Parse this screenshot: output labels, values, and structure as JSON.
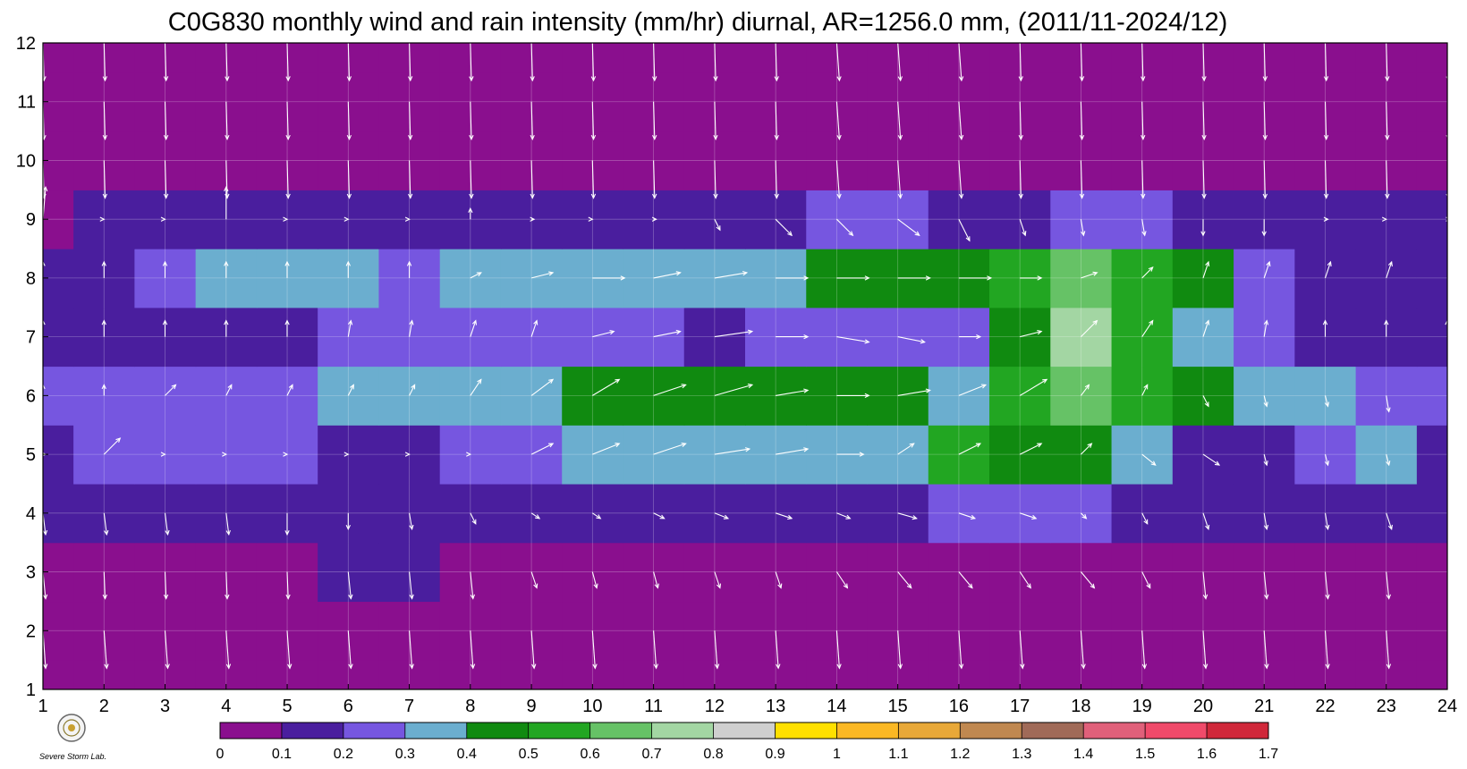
{
  "chart_data": {
    "type": "heatmap",
    "title": "C0G830 monthly wind and rain intensity (mm/hr) diurnal, AR=1256.0 mm, (2011/11-2024/12)",
    "xlabel": "",
    "ylabel": "",
    "xlim": [
      1,
      24
    ],
    "ylim": [
      1,
      12
    ],
    "x_ticks": [
      "1",
      "2",
      "3",
      "4",
      "5",
      "6",
      "7",
      "8",
      "9",
      "10",
      "11",
      "12",
      "13",
      "14",
      "15",
      "16",
      "17",
      "18",
      "19",
      "20",
      "21",
      "22",
      "23",
      "24"
    ],
    "y_ticks": [
      "1",
      "2",
      "3",
      "4",
      "5",
      "6",
      "7",
      "8",
      "9",
      "10",
      "11",
      "12"
    ],
    "grid": true,
    "colorbar": {
      "placement": "bottom",
      "labels": [
        "0",
        "0.1",
        "0.2",
        "0.3",
        "0.4",
        "0.5",
        "0.6",
        "0.7",
        "0.8",
        "0.9",
        "1",
        "1.1",
        "1.2",
        "1.3",
        "1.4",
        "1.5",
        "1.6",
        "1.7"
      ],
      "colors": [
        "#8a0f8e",
        "#4a1e9e",
        "#7656e0",
        "#6baecf",
        "#108a10",
        "#22a622",
        "#66c266",
        "#a3d6a3",
        "#cfcfcf",
        "#ffe000",
        "#fbb824",
        "#e8a838",
        "#c08850",
        "#a06a58",
        "#e0607a",
        "#f04a6a",
        "#d0283a"
      ]
    },
    "rain_intensity": {
      "hours": [
        1,
        2,
        3,
        4,
        5,
        6,
        7,
        8,
        9,
        10,
        11,
        12,
        13,
        14,
        15,
        16,
        17,
        18,
        19,
        20,
        21,
        22,
        23,
        24
      ],
      "months": [
        1,
        2,
        3,
        4,
        5,
        6,
        7,
        8,
        9,
        10,
        11,
        12
      ],
      "values": [
        [
          0.05,
          0.05,
          0.05,
          0.05,
          0.05,
          0.05,
          0.05,
          0.05,
          0.05,
          0.05,
          0.05,
          0.05,
          0.05,
          0.05,
          0.05,
          0.05,
          0.05,
          0.05,
          0.05,
          0.05,
          0.05,
          0.05,
          0.05,
          0.05
        ],
        [
          0.05,
          0.05,
          0.05,
          0.05,
          0.05,
          0.05,
          0.05,
          0.05,
          0.05,
          0.05,
          0.05,
          0.05,
          0.05,
          0.05,
          0.05,
          0.05,
          0.05,
          0.05,
          0.05,
          0.05,
          0.05,
          0.05,
          0.05,
          0.05
        ],
        [
          0.06,
          0.07,
          0.07,
          0.06,
          0.09,
          0.11,
          0.11,
          0.09,
          0.06,
          0.06,
          0.06,
          0.07,
          0.07,
          0.07,
          0.08,
          0.07,
          0.07,
          0.09,
          0.07,
          0.07,
          0.08,
          0.07,
          0.08,
          0.06
        ],
        [
          0.1,
          0.12,
          0.12,
          0.13,
          0.12,
          0.15,
          0.15,
          0.19,
          0.19,
          0.19,
          0.16,
          0.17,
          0.17,
          0.18,
          0.19,
          0.22,
          0.24,
          0.22,
          0.13,
          0.13,
          0.12,
          0.13,
          0.15,
          0.12
        ],
        [
          0.17,
          0.28,
          0.22,
          0.22,
          0.22,
          0.12,
          0.14,
          0.25,
          0.28,
          0.35,
          0.32,
          0.33,
          0.35,
          0.37,
          0.33,
          0.55,
          0.46,
          0.43,
          0.32,
          0.19,
          0.19,
          0.22,
          0.32,
          0.18
        ],
        [
          0.21,
          0.22,
          0.2,
          0.2,
          0.26,
          0.33,
          0.32,
          0.32,
          0.35,
          0.44,
          0.48,
          0.43,
          0.48,
          0.42,
          0.45,
          0.36,
          0.52,
          0.68,
          0.56,
          0.42,
          0.32,
          0.33,
          0.23,
          0.22
        ],
        [
          0.12,
          0.14,
          0.17,
          0.1,
          0.14,
          0.22,
          0.28,
          0.26,
          0.26,
          0.28,
          0.25,
          0.15,
          0.22,
          0.25,
          0.25,
          0.28,
          0.48,
          0.75,
          0.55,
          0.36,
          0.26,
          0.14,
          0.12,
          0.1
        ],
        [
          0.12,
          0.15,
          0.26,
          0.32,
          0.32,
          0.32,
          0.26,
          0.32,
          0.33,
          0.35,
          0.33,
          0.33,
          0.38,
          0.42,
          0.42,
          0.42,
          0.5,
          0.62,
          0.52,
          0.45,
          0.28,
          0.14,
          0.12,
          0.12
        ],
        [
          0.08,
          0.11,
          0.12,
          0.15,
          0.13,
          0.13,
          0.13,
          0.14,
          0.14,
          0.14,
          0.14,
          0.16,
          0.18,
          0.28,
          0.22,
          0.18,
          0.18,
          0.23,
          0.2,
          0.16,
          0.12,
          0.12,
          0.12,
          0.12
        ],
        [
          0.05,
          0.05,
          0.05,
          0.05,
          0.05,
          0.05,
          0.05,
          0.05,
          0.05,
          0.05,
          0.05,
          0.05,
          0.05,
          0.05,
          0.05,
          0.05,
          0.05,
          0.05,
          0.05,
          0.05,
          0.05,
          0.05,
          0.05,
          0.05
        ],
        [
          0.05,
          0.05,
          0.05,
          0.05,
          0.05,
          0.05,
          0.05,
          0.05,
          0.05,
          0.05,
          0.05,
          0.05,
          0.05,
          0.05,
          0.05,
          0.05,
          0.05,
          0.05,
          0.05,
          0.05,
          0.05,
          0.05,
          0.05,
          0.05
        ],
        [
          0.05,
          0.05,
          0.05,
          0.05,
          0.05,
          0.05,
          0.05,
          0.05,
          0.05,
          0.05,
          0.05,
          0.05,
          0.05,
          0.05,
          0.05,
          0.05,
          0.05,
          0.05,
          0.05,
          0.05,
          0.05,
          0.05,
          0.05,
          0.05
        ]
      ]
    },
    "wind": {
      "hours": [
        1,
        2,
        3,
        4,
        5,
        6,
        7,
        8,
        9,
        10,
        11,
        12,
        13,
        14,
        15,
        16,
        17,
        18,
        19,
        20,
        21,
        22,
        23,
        24
      ],
      "months": [
        2,
        3,
        4,
        5,
        6,
        7,
        8,
        9,
        10,
        11,
        12
      ],
      "u": [
        [
          0.05,
          0.05,
          0.05,
          0.05,
          0.05,
          0.05,
          0.05,
          0.05,
          0.05,
          0.05,
          0.05,
          0.05,
          0.05,
          0.05,
          0.05,
          0.05,
          0.05,
          0.05,
          0.05,
          0.05,
          0.05,
          0.05,
          0.05,
          0.05
        ],
        [
          0.05,
          0.02,
          0.02,
          0.02,
          0.02,
          0.05,
          0.05,
          0.05,
          0.1,
          0.08,
          0.08,
          0.1,
          0.1,
          0.2,
          0.25,
          0.25,
          0.2,
          0.25,
          0.15,
          0.05,
          0.05,
          0.05,
          0.05,
          0.05
        ],
        [
          0.05,
          0.05,
          0.05,
          0.05,
          0.0,
          0.0,
          0.05,
          0.1,
          0.15,
          0.15,
          0.2,
          0.25,
          0.3,
          0.25,
          0.35,
          0.3,
          0.3,
          0.1,
          0.1,
          0.1,
          0.05,
          0.05,
          0.1,
          0.05
        ],
        [
          0.05,
          0.3,
          0.0,
          0.0,
          0.0,
          0.0,
          0.0,
          0.0,
          0.4,
          0.5,
          0.6,
          0.65,
          0.6,
          0.5,
          0.3,
          0.4,
          0.4,
          0.2,
          0.25,
          0.3,
          0.05,
          0.05,
          0.05,
          0.05
        ],
        [
          0.0,
          0.0,
          0.2,
          0.1,
          0.1,
          0.1,
          0.1,
          0.2,
          0.4,
          0.5,
          0.6,
          0.7,
          0.6,
          0.6,
          0.6,
          0.5,
          0.5,
          0.15,
          0.1,
          0.1,
          0.05,
          0.05,
          0.05,
          0.05
        ],
        [
          0.0,
          0.0,
          0.0,
          0.0,
          0.0,
          0.05,
          0.05,
          0.1,
          0.1,
          0.4,
          0.5,
          0.7,
          0.6,
          0.6,
          0.5,
          0.4,
          0.4,
          0.3,
          0.2,
          0.1,
          0.05,
          0.0,
          0.0,
          0.0
        ],
        [
          0.0,
          0.0,
          0.0,
          0.0,
          0.0,
          0.0,
          0.0,
          0.2,
          0.4,
          0.6,
          0.5,
          0.6,
          0.6,
          0.6,
          0.6,
          0.6,
          0.4,
          0.3,
          0.2,
          0.1,
          0.1,
          0.1,
          0.1,
          0.05
        ],
        [
          0.05,
          0.0,
          0.0,
          0.0,
          0.0,
          0.0,
          0.0,
          0.0,
          0.05,
          0.0,
          0.05,
          0.1,
          0.3,
          0.3,
          0.4,
          0.2,
          0.1,
          0.05,
          0.05,
          0.0,
          0.0,
          0.05,
          0.0,
          0.05
        ],
        [
          0.02,
          0.02,
          0.02,
          0.02,
          0.02,
          0.02,
          0.02,
          0.02,
          0.02,
          0.02,
          0.02,
          0.02,
          0.02,
          0.05,
          0.05,
          0.05,
          0.02,
          0.02,
          0.02,
          0.02,
          0.02,
          0.02,
          0.02,
          0.02
        ],
        [
          0.02,
          0.02,
          0.02,
          0.02,
          0.02,
          0.02,
          0.02,
          0.02,
          0.02,
          0.02,
          0.02,
          0.02,
          0.02,
          0.05,
          0.05,
          0.05,
          0.02,
          0.02,
          0.02,
          0.02,
          0.02,
          0.02,
          0.02,
          0.02
        ],
        [
          0.02,
          0.02,
          0.02,
          0.02,
          0.02,
          0.02,
          0.02,
          0.02,
          0.02,
          0.02,
          0.02,
          0.02,
          0.02,
          0.05,
          0.05,
          0.05,
          0.02,
          0.02,
          0.02,
          0.02,
          0.02,
          0.02,
          0.02,
          0.02
        ]
      ],
      "v": [
        [
          -0.7,
          -0.7,
          -0.7,
          -0.7,
          -0.7,
          -0.7,
          -0.7,
          -0.7,
          -0.7,
          -0.7,
          -0.7,
          -0.7,
          -0.7,
          -0.7,
          -0.7,
          -0.7,
          -0.7,
          -0.7,
          -0.7,
          -0.7,
          -0.7,
          -0.7,
          -0.7,
          -0.7
        ],
        [
          -0.5,
          -0.5,
          -0.5,
          -0.5,
          -0.5,
          -0.5,
          -0.5,
          -0.5,
          -0.3,
          -0.3,
          -0.3,
          -0.3,
          -0.3,
          -0.3,
          -0.3,
          -0.3,
          -0.3,
          -0.3,
          -0.3,
          -0.5,
          -0.5,
          -0.5,
          -0.5,
          -0.5
        ],
        [
          -0.4,
          -0.4,
          -0.4,
          -0.4,
          -0.4,
          -0.3,
          -0.3,
          -0.2,
          -0.1,
          -0.1,
          -0.1,
          -0.1,
          -0.1,
          -0.1,
          -0.1,
          -0.1,
          -0.1,
          -0.1,
          -0.2,
          -0.3,
          -0.3,
          -0.3,
          -0.3,
          -0.3
        ],
        [
          0.0,
          0.3,
          0.0,
          0.0,
          0.0,
          0.0,
          0.0,
          0.0,
          0.2,
          0.2,
          0.2,
          0.1,
          0.1,
          0.0,
          0.2,
          0.2,
          0.2,
          0.2,
          -0.2,
          -0.2,
          -0.2,
          -0.2,
          -0.2,
          -0.3
        ],
        [
          0.2,
          0.2,
          0.2,
          0.2,
          0.2,
          0.2,
          0.2,
          0.3,
          0.3,
          0.3,
          0.2,
          0.2,
          0.1,
          0.0,
          0.1,
          0.2,
          0.3,
          0.2,
          0.2,
          -0.2,
          -0.2,
          -0.2,
          -0.3,
          -0.3
        ],
        [
          0.3,
          0.3,
          0.3,
          0.3,
          0.3,
          0.3,
          0.3,
          0.3,
          0.3,
          0.1,
          0.1,
          0.1,
          0.0,
          -0.1,
          -0.1,
          0.0,
          0.1,
          0.3,
          0.3,
          0.3,
          0.3,
          0.3,
          0.3,
          0.3
        ],
        [
          0.3,
          0.3,
          0.3,
          0.3,
          0.3,
          0.3,
          0.3,
          0.1,
          0.1,
          0.0,
          0.1,
          0.1,
          0.0,
          0.0,
          0.0,
          0.0,
          0.0,
          0.1,
          0.2,
          0.3,
          0.3,
          0.3,
          0.3,
          0.3
        ],
        [
          0.6,
          0.0,
          0.0,
          0.6,
          0.0,
          0.0,
          0.0,
          0.2,
          0.0,
          0.0,
          0.0,
          -0.2,
          -0.3,
          -0.3,
          -0.3,
          -0.4,
          -0.3,
          -0.3,
          -0.3,
          -0.3,
          -0.3,
          0.0,
          0.0,
          0.0
        ],
        [
          -0.7,
          -0.7,
          -0.7,
          -0.7,
          -0.7,
          -0.7,
          -0.7,
          -0.7,
          -0.7,
          -0.7,
          -0.7,
          -0.7,
          -0.7,
          -0.7,
          -0.7,
          -0.7,
          -0.7,
          -0.7,
          -0.7,
          -0.7,
          -0.7,
          -0.7,
          -0.7,
          -0.7
        ],
        [
          -0.7,
          -0.7,
          -0.7,
          -0.7,
          -0.7,
          -0.7,
          -0.7,
          -0.7,
          -0.7,
          -0.7,
          -0.7,
          -0.7,
          -0.7,
          -0.7,
          -0.7,
          -0.7,
          -0.7,
          -0.7,
          -0.7,
          -0.7,
          -0.7,
          -0.7,
          -0.7,
          -0.7
        ],
        [
          -0.7,
          -0.7,
          -0.7,
          -0.7,
          -0.7,
          -0.7,
          -0.7,
          -0.7,
          -0.7,
          -0.7,
          -0.7,
          -0.7,
          -0.7,
          -0.7,
          -0.7,
          -0.7,
          -0.7,
          -0.7,
          -0.7,
          -0.7,
          -0.7,
          -0.7,
          -0.7,
          -0.7
        ]
      ]
    }
  },
  "logo": {
    "text": "Severe Storm Lab."
  }
}
